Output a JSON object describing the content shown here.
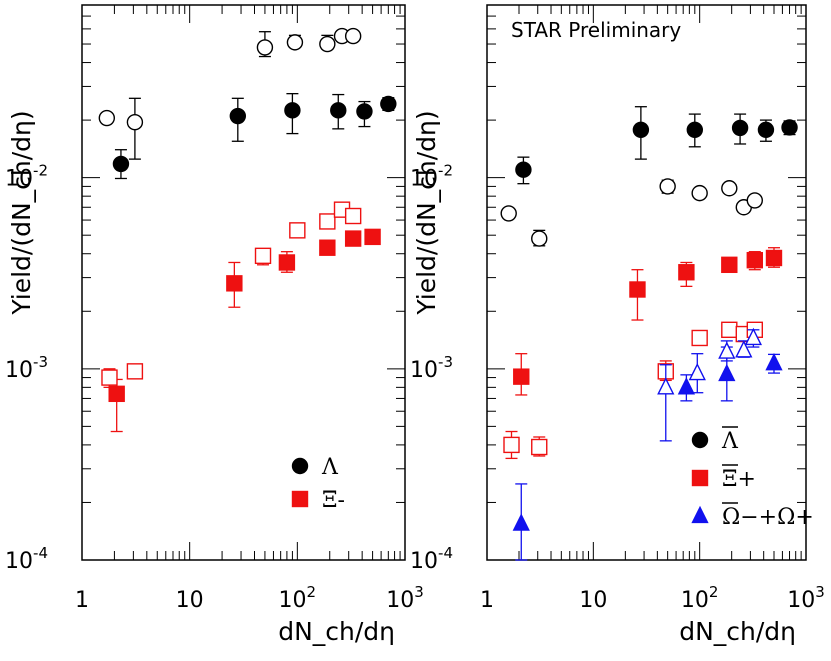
{
  "chart_data": [
    {
      "type": "scatter",
      "panel": "left",
      "xscale": "log",
      "yscale": "log",
      "xlim": [
        1,
        1000
      ],
      "ylim": [
        0.0001,
        0.08
      ],
      "xlabel": "dN_ch/dη",
      "ylabel": "Yield/(dN_ch/dη)",
      "annotation": "",
      "legend_position": "bottom-right",
      "series": [
        {
          "name": "Λ",
          "marker": "circle",
          "fill": "filled",
          "color": "#000000",
          "legend": true,
          "points": [
            [
              2.3,
              0.0118,
              0.0099,
              0.014
            ],
            [
              28,
              0.021,
              0.0155,
              0.026
            ],
            [
              90,
              0.0225,
              0.017,
              0.0275
            ],
            [
              240,
              0.0225,
              0.018,
              0.0272
            ],
            [
              420,
              0.0222,
              0.0185,
              0.025
            ],
            [
              700,
              0.0243,
              0.0225,
              0.0262
            ]
          ]
        },
        {
          "name": "Λ open",
          "marker": "circle",
          "fill": "open",
          "color": "#000000",
          "legend": false,
          "points": [
            [
              1.7,
              0.0205,
              0.0205,
              0.0205
            ],
            [
              3.1,
              0.0195,
              0.0125,
              0.026
            ],
            [
              50,
              0.048,
              0.043,
              0.058
            ],
            [
              95,
              0.051,
              0.0485,
              0.0555
            ],
            [
              190,
              0.05,
              0.047,
              0.0555
            ],
            [
              260,
              0.055,
              0.055,
              0.055
            ],
            [
              330,
              0.055,
              0.055,
              0.055
            ]
          ]
        },
        {
          "name": "Ξ-",
          "marker": "square",
          "fill": "filled",
          "color": "#ee1111",
          "legend": true,
          "points": [
            [
              2.1,
              0.00074,
              0.00047,
              0.00088
            ],
            [
              26,
              0.0028,
              0.0021,
              0.0036
            ],
            [
              80,
              0.0036,
              0.0032,
              0.0041
            ],
            [
              190,
              0.0043,
              0.0043,
              0.0043
            ],
            [
              330,
              0.0048,
              0.0048,
              0.0048
            ],
            [
              500,
              0.0049,
              0.0049,
              0.0049
            ]
          ]
        },
        {
          "name": "Ξ- open",
          "marker": "square",
          "fill": "open",
          "color": "#ee1111",
          "legend": false,
          "points": [
            [
              1.8,
              0.0009,
              0.0008,
              0.001
            ],
            [
              3.1,
              0.00097,
              0.00092,
              0.00103
            ],
            [
              48,
              0.0039,
              0.0035,
              0.0042
            ],
            [
              100,
              0.0053,
              0.0051,
              0.0055
            ],
            [
              190,
              0.0059,
              0.0055,
              0.0062
            ],
            [
              260,
              0.0068,
              0.0064,
              0.0071
            ],
            [
              330,
              0.0063,
              0.0059,
              0.0067
            ]
          ]
        }
      ],
      "legend": [
        {
          "label": "Λ",
          "marker": "circle",
          "color": "#000000"
        },
        {
          "label": "Ξ-",
          "marker": "square",
          "color": "#ee1111"
        }
      ]
    },
    {
      "type": "scatter",
      "panel": "right",
      "xscale": "log",
      "yscale": "log",
      "xlim": [
        1,
        1000
      ],
      "ylim": [
        0.0001,
        0.08
      ],
      "xlabel": "dN_ch/dη",
      "ylabel": "Yield/(dN_ch/dη)",
      "annotation": "STAR Preliminary",
      "legend_position": "bottom-right",
      "series": [
        {
          "name": "Λ-bar",
          "marker": "circle",
          "fill": "filled",
          "color": "#000000",
          "legend": true,
          "points": [
            [
              2.2,
              0.011,
              0.0093,
              0.0128
            ],
            [
              28,
              0.0178,
              0.0125,
              0.0235
            ],
            [
              90,
              0.0178,
              0.0145,
              0.0215
            ],
            [
              240,
              0.0182,
              0.015,
              0.0215
            ],
            [
              420,
              0.0178,
              0.0155,
              0.02
            ],
            [
              700,
              0.0183,
              0.0168,
              0.0198
            ]
          ]
        },
        {
          "name": "Λ-bar open",
          "marker": "circle",
          "fill": "open",
          "color": "#000000",
          "legend": false,
          "points": [
            [
              1.6,
              0.0065,
              0.0065,
              0.0065
            ],
            [
              3.1,
              0.0048,
              0.0044,
              0.0053
            ],
            [
              50,
              0.009,
              0.0083,
              0.0097
            ],
            [
              100,
              0.0083,
              0.0083,
              0.0083
            ],
            [
              190,
              0.0088,
              0.0088,
              0.0088
            ],
            [
              260,
              0.007,
              0.0066,
              0.0074
            ],
            [
              330,
              0.0076,
              0.0076,
              0.0076
            ]
          ]
        },
        {
          "name": "Ξ+",
          "marker": "square",
          "fill": "filled",
          "color": "#ee1111",
          "legend": true,
          "points": [
            [
              2.1,
              0.00091,
              0.00073,
              0.0012
            ],
            [
              26,
              0.0026,
              0.0018,
              0.0033
            ],
            [
              75,
              0.0032,
              0.0027,
              0.0036
            ],
            [
              190,
              0.0035,
              0.0035,
              0.0035
            ],
            [
              330,
              0.0037,
              0.0033,
              0.0041
            ],
            [
              500,
              0.0038,
              0.0034,
              0.0043
            ]
          ]
        },
        {
          "name": "Ξ+ open",
          "marker": "square",
          "fill": "open",
          "color": "#ee1111",
          "legend": false,
          "points": [
            [
              1.7,
              0.0004,
              0.00034,
              0.00047
            ],
            [
              3.1,
              0.00039,
              0.00035,
              0.00044
            ],
            [
              48,
              0.00097,
              0.00087,
              0.0011
            ],
            [
              100,
              0.00145,
              0.00145,
              0.00145
            ],
            [
              190,
              0.0016,
              0.0016,
              0.0016
            ],
            [
              260,
              0.00152,
              0.0014,
              0.0016
            ],
            [
              330,
              0.0016,
              0.0015,
              0.0017
            ]
          ]
        },
        {
          "name": "Ω-+Ω+",
          "marker": "triangle",
          "fill": "filled",
          "color": "#1111ee",
          "legend": true,
          "points": [
            [
              2.1,
              0.000155,
              0.0001,
              0.00025
            ],
            [
              75,
              0.0008,
              0.00068,
              0.00093
            ],
            [
              180,
              0.00094,
              0.00068,
              0.0013
            ],
            [
              500,
              0.00107,
              0.00095,
              0.00119
            ]
          ]
        },
        {
          "name": "Ω-+Ω+ open",
          "marker": "triangle",
          "fill": "open",
          "color": "#1111ee",
          "legend": false,
          "points": [
            [
              48,
              0.0008,
              0.00042,
              0.00105
            ],
            [
              95,
              0.00095,
              0.00075,
              0.0012
            ],
            [
              180,
              0.00123,
              0.0011,
              0.0014
            ],
            [
              260,
              0.00125,
              0.00115,
              0.0014
            ],
            [
              320,
              0.00145,
              0.0013,
              0.0016
            ]
          ]
        }
      ],
      "legend": [
        {
          "label": "Λ",
          "marker": "circle",
          "color": "#000000",
          "overbar": true
        },
        {
          "label": "Ξ+",
          "marker": "square",
          "color": "#ee1111",
          "overbar": true
        },
        {
          "label": "Ω−+Ω+",
          "marker": "triangle",
          "color": "#1111ee",
          "overbar": true
        }
      ]
    }
  ],
  "xticks": [
    {
      "value": 1,
      "label": "1"
    },
    {
      "value": 10,
      "label": "10"
    },
    {
      "value": 100,
      "label": "10",
      "exp": "2"
    },
    {
      "value": 1000,
      "label": "10",
      "exp": "3"
    }
  ],
  "yticks": [
    {
      "value": 0.0001,
      "label": "10",
      "exp": "-4"
    },
    {
      "value": 0.001,
      "label": "10",
      "exp": "-3"
    },
    {
      "value": 0.01,
      "label": "10",
      "exp": "-2"
    }
  ]
}
